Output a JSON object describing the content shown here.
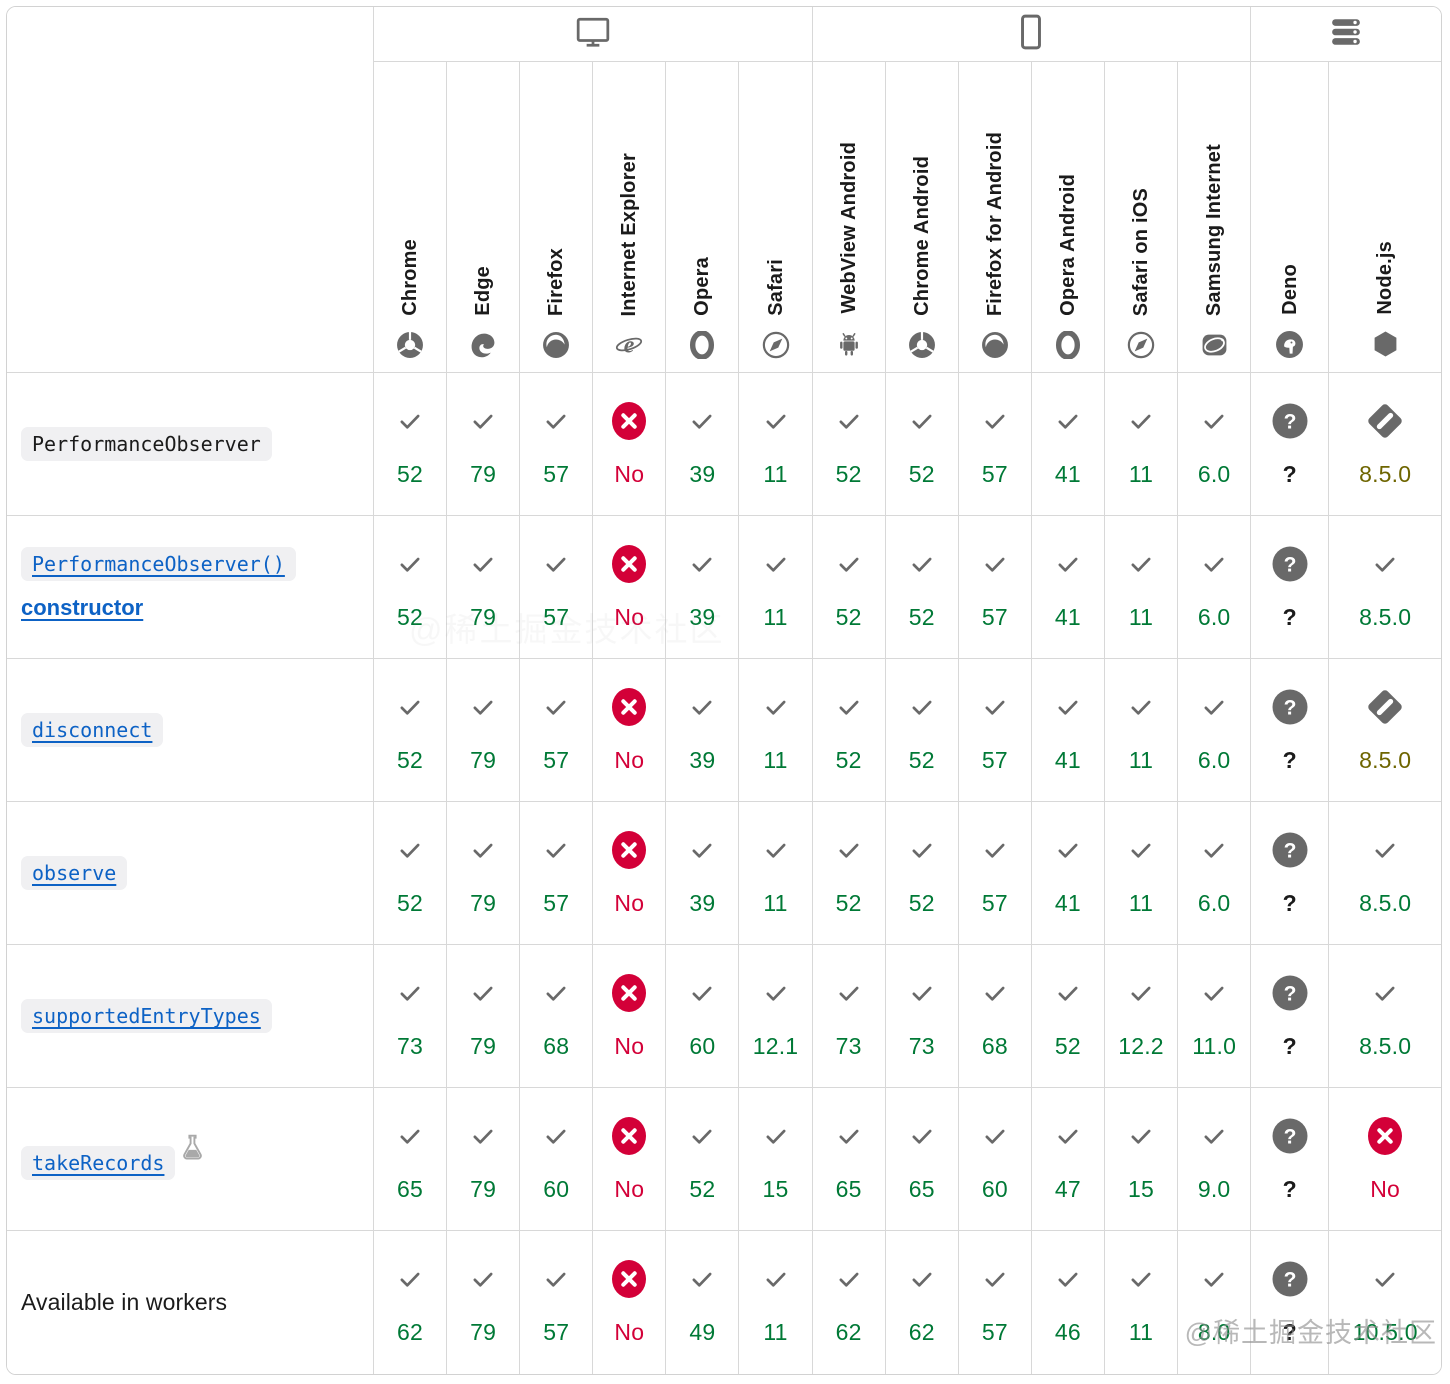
{
  "colors": {
    "support_yes": "#007936",
    "support_no": "#d30038",
    "support_partial": "#6e6500",
    "link_blue": "#0d62c5",
    "icon_gray": "#696969"
  },
  "watermark": {
    "text": "@稀土掘金技术社区"
  },
  "groups": [
    {
      "icon": "desktop-icon",
      "span": 6
    },
    {
      "icon": "mobile-icon",
      "span": 6
    },
    {
      "icon": "server-icon",
      "span": 2
    }
  ],
  "browsers": [
    {
      "id": "chrome",
      "label": "Chrome",
      "icon": "chrome-icon"
    },
    {
      "id": "edge",
      "label": "Edge",
      "icon": "edge-icon"
    },
    {
      "id": "firefox",
      "label": "Firefox",
      "icon": "firefox-icon"
    },
    {
      "id": "ie",
      "label": "Internet Explorer",
      "icon": "ie-icon"
    },
    {
      "id": "opera",
      "label": "Opera",
      "icon": "opera-icon"
    },
    {
      "id": "safari",
      "label": "Safari",
      "icon": "safari-icon"
    },
    {
      "id": "webview-android",
      "label": "WebView Android",
      "icon": "android-icon"
    },
    {
      "id": "chrome-android",
      "label": "Chrome Android",
      "icon": "chrome-icon"
    },
    {
      "id": "firefox-android",
      "label": "Firefox for Android",
      "icon": "firefox-icon"
    },
    {
      "id": "opera-android",
      "label": "Opera Android",
      "icon": "opera-icon"
    },
    {
      "id": "safari-ios",
      "label": "Safari on iOS",
      "icon": "safari-icon"
    },
    {
      "id": "samsung-internet",
      "label": "Samsung Internet",
      "icon": "samsung-icon"
    },
    {
      "id": "deno",
      "label": "Deno",
      "icon": "deno-icon"
    },
    {
      "id": "nodejs",
      "label": "Node.js",
      "icon": "node-icon"
    }
  ],
  "rows": [
    {
      "id": "performanceobserver",
      "code": "PerformanceObserver",
      "link": false,
      "experimental": false,
      "cells": [
        {
          "badge": "check",
          "version": "52",
          "tone": "green"
        },
        {
          "badge": "check",
          "version": "79",
          "tone": "green"
        },
        {
          "badge": "check",
          "version": "57",
          "tone": "green"
        },
        {
          "badge": "no",
          "version": "No",
          "tone": "red"
        },
        {
          "badge": "check",
          "version": "39",
          "tone": "green"
        },
        {
          "badge": "check",
          "version": "11",
          "tone": "green"
        },
        {
          "badge": "check",
          "version": "52",
          "tone": "green"
        },
        {
          "badge": "check",
          "version": "52",
          "tone": "green"
        },
        {
          "badge": "check",
          "version": "57",
          "tone": "green"
        },
        {
          "badge": "check",
          "version": "41",
          "tone": "green"
        },
        {
          "badge": "check",
          "version": "11",
          "tone": "green"
        },
        {
          "badge": "check",
          "version": "6.0",
          "tone": "green"
        },
        {
          "badge": "question",
          "version": "?",
          "tone": "dark"
        },
        {
          "badge": "partial",
          "version": "8.5.0",
          "tone": "olive"
        }
      ]
    },
    {
      "id": "constructor",
      "code": "PerformanceObserver()",
      "suffix": "constructor",
      "link": true,
      "experimental": false,
      "cells": [
        {
          "badge": "check",
          "version": "52",
          "tone": "green"
        },
        {
          "badge": "check",
          "version": "79",
          "tone": "green"
        },
        {
          "badge": "check",
          "version": "57",
          "tone": "green"
        },
        {
          "badge": "no",
          "version": "No",
          "tone": "red"
        },
        {
          "badge": "check",
          "version": "39",
          "tone": "green"
        },
        {
          "badge": "check",
          "version": "11",
          "tone": "green"
        },
        {
          "badge": "check",
          "version": "52",
          "tone": "green"
        },
        {
          "badge": "check",
          "version": "52",
          "tone": "green"
        },
        {
          "badge": "check",
          "version": "57",
          "tone": "green"
        },
        {
          "badge": "check",
          "version": "41",
          "tone": "green"
        },
        {
          "badge": "check",
          "version": "11",
          "tone": "green"
        },
        {
          "badge": "check",
          "version": "6.0",
          "tone": "green"
        },
        {
          "badge": "question",
          "version": "?",
          "tone": "dark"
        },
        {
          "badge": "check",
          "version": "8.5.0",
          "tone": "green"
        }
      ]
    },
    {
      "id": "disconnect",
      "code": "disconnect",
      "link": true,
      "experimental": false,
      "cells": [
        {
          "badge": "check",
          "version": "52",
          "tone": "green"
        },
        {
          "badge": "check",
          "version": "79",
          "tone": "green"
        },
        {
          "badge": "check",
          "version": "57",
          "tone": "green"
        },
        {
          "badge": "no",
          "version": "No",
          "tone": "red"
        },
        {
          "badge": "check",
          "version": "39",
          "tone": "green"
        },
        {
          "badge": "check",
          "version": "11",
          "tone": "green"
        },
        {
          "badge": "check",
          "version": "52",
          "tone": "green"
        },
        {
          "badge": "check",
          "version": "52",
          "tone": "green"
        },
        {
          "badge": "check",
          "version": "57",
          "tone": "green"
        },
        {
          "badge": "check",
          "version": "41",
          "tone": "green"
        },
        {
          "badge": "check",
          "version": "11",
          "tone": "green"
        },
        {
          "badge": "check",
          "version": "6.0",
          "tone": "green"
        },
        {
          "badge": "question",
          "version": "?",
          "tone": "dark"
        },
        {
          "badge": "partial",
          "version": "8.5.0",
          "tone": "olive"
        }
      ]
    },
    {
      "id": "observe",
      "code": "observe",
      "link": true,
      "experimental": false,
      "cells": [
        {
          "badge": "check",
          "version": "52",
          "tone": "green"
        },
        {
          "badge": "check",
          "version": "79",
          "tone": "green"
        },
        {
          "badge": "check",
          "version": "57",
          "tone": "green"
        },
        {
          "badge": "no",
          "version": "No",
          "tone": "red"
        },
        {
          "badge": "check",
          "version": "39",
          "tone": "green"
        },
        {
          "badge": "check",
          "version": "11",
          "tone": "green"
        },
        {
          "badge": "check",
          "version": "52",
          "tone": "green"
        },
        {
          "badge": "check",
          "version": "52",
          "tone": "green"
        },
        {
          "badge": "check",
          "version": "57",
          "tone": "green"
        },
        {
          "badge": "check",
          "version": "41",
          "tone": "green"
        },
        {
          "badge": "check",
          "version": "11",
          "tone": "green"
        },
        {
          "badge": "check",
          "version": "6.0",
          "tone": "green"
        },
        {
          "badge": "question",
          "version": "?",
          "tone": "dark"
        },
        {
          "badge": "check",
          "version": "8.5.0",
          "tone": "green"
        }
      ]
    },
    {
      "id": "supportedentrytypes",
      "code": "supportedEntryTypes",
      "link": true,
      "experimental": false,
      "cells": [
        {
          "badge": "check",
          "version": "73",
          "tone": "green"
        },
        {
          "badge": "check",
          "version": "79",
          "tone": "green"
        },
        {
          "badge": "check",
          "version": "68",
          "tone": "green"
        },
        {
          "badge": "no",
          "version": "No",
          "tone": "red"
        },
        {
          "badge": "check",
          "version": "60",
          "tone": "green"
        },
        {
          "badge": "check",
          "version": "12.1",
          "tone": "green"
        },
        {
          "badge": "check",
          "version": "73",
          "tone": "green"
        },
        {
          "badge": "check",
          "version": "73",
          "tone": "green"
        },
        {
          "badge": "check",
          "version": "68",
          "tone": "green"
        },
        {
          "badge": "check",
          "version": "52",
          "tone": "green"
        },
        {
          "badge": "check",
          "version": "12.2",
          "tone": "green"
        },
        {
          "badge": "check",
          "version": "11.0",
          "tone": "green"
        },
        {
          "badge": "question",
          "version": "?",
          "tone": "dark"
        },
        {
          "badge": "check",
          "version": "8.5.0",
          "tone": "green"
        }
      ]
    },
    {
      "id": "takerecords",
      "code": "takeRecords",
      "link": true,
      "experimental": true,
      "cells": [
        {
          "badge": "check",
          "version": "65",
          "tone": "green"
        },
        {
          "badge": "check",
          "version": "79",
          "tone": "green"
        },
        {
          "badge": "check",
          "version": "60",
          "tone": "green"
        },
        {
          "badge": "no",
          "version": "No",
          "tone": "red"
        },
        {
          "badge": "check",
          "version": "52",
          "tone": "green"
        },
        {
          "badge": "check",
          "version": "15",
          "tone": "green"
        },
        {
          "badge": "check",
          "version": "65",
          "tone": "green"
        },
        {
          "badge": "check",
          "version": "65",
          "tone": "green"
        },
        {
          "badge": "check",
          "version": "60",
          "tone": "green"
        },
        {
          "badge": "check",
          "version": "47",
          "tone": "green"
        },
        {
          "badge": "check",
          "version": "15",
          "tone": "green"
        },
        {
          "badge": "check",
          "version": "9.0",
          "tone": "green"
        },
        {
          "badge": "question",
          "version": "?",
          "tone": "dark"
        },
        {
          "badge": "no",
          "version": "No",
          "tone": "red"
        }
      ]
    },
    {
      "id": "available-in-workers",
      "plain": "Available in workers",
      "link": false,
      "experimental": false,
      "cells": [
        {
          "badge": "check",
          "version": "62",
          "tone": "green"
        },
        {
          "badge": "check",
          "version": "79",
          "tone": "green"
        },
        {
          "badge": "check",
          "version": "57",
          "tone": "green"
        },
        {
          "badge": "no",
          "version": "No",
          "tone": "red"
        },
        {
          "badge": "check",
          "version": "49",
          "tone": "green"
        },
        {
          "badge": "check",
          "version": "11",
          "tone": "green"
        },
        {
          "badge": "check",
          "version": "62",
          "tone": "green"
        },
        {
          "badge": "check",
          "version": "62",
          "tone": "green"
        },
        {
          "badge": "check",
          "version": "57",
          "tone": "green"
        },
        {
          "badge": "check",
          "version": "46",
          "tone": "green"
        },
        {
          "badge": "check",
          "version": "11",
          "tone": "green"
        },
        {
          "badge": "check",
          "version": "8.0",
          "tone": "green"
        },
        {
          "badge": "question",
          "version": "?",
          "tone": "dark"
        },
        {
          "badge": "check",
          "version": "10.5.0",
          "tone": "green"
        }
      ]
    }
  ]
}
